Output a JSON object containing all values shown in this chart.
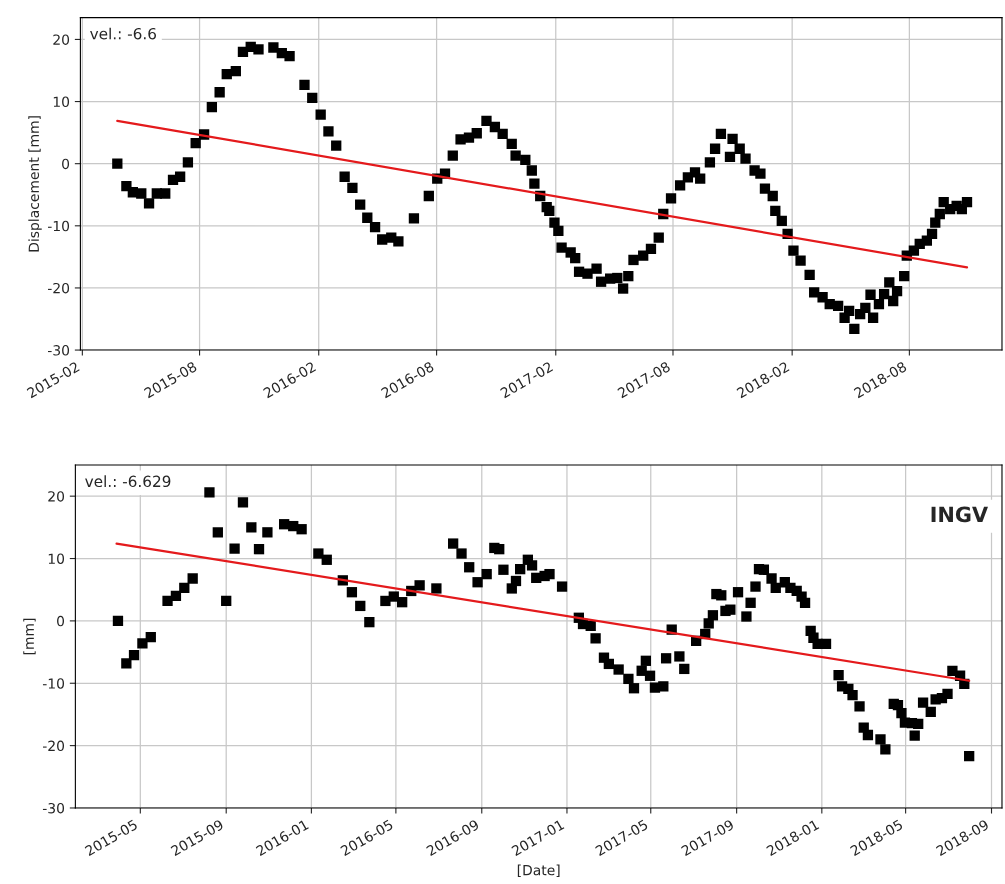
{
  "chart_data": [
    {
      "type": "scatter",
      "ylabel": "Displacement [mm]",
      "annotations": [
        "vel.: -6.6"
      ],
      "marker": "square",
      "grid": true,
      "xlim": [
        "2015-01-29",
        "2018-12-22"
      ],
      "ylim": [
        -30,
        23.5
      ],
      "xticks": [
        "2015-02",
        "2015-08",
        "2016-02",
        "2016-08",
        "2017-02",
        "2017-08",
        "2018-02",
        "2018-08"
      ],
      "yticks": [
        -30,
        -20,
        -10,
        0,
        10,
        20
      ],
      "series": [
        {
          "color": "#000000",
          "x": [
            "2015-03-27",
            "2015-04-10",
            "2015-04-20",
            "2015-05-03",
            "2015-05-15",
            "2015-05-27",
            "2015-06-09",
            "2015-06-21",
            "2015-07-02",
            "2015-07-14",
            "2015-07-26",
            "2015-08-08",
            "2015-08-20",
            "2015-09-01",
            "2015-09-12",
            "2015-09-26",
            "2015-10-07",
            "2015-10-19",
            "2015-10-31",
            "2015-11-23",
            "2015-12-06",
            "2015-12-18",
            "2016-01-10",
            "2016-01-22",
            "2016-02-04",
            "2016-02-16",
            "2016-02-28",
            "2016-03-12",
            "2016-03-24",
            "2016-04-05",
            "2016-04-16",
            "2016-04-28",
            "2016-05-09",
            "2016-05-23",
            "2016-06-03",
            "2016-06-27",
            "2016-07-20",
            "2016-08-02",
            "2016-08-14",
            "2016-08-26",
            "2016-09-07",
            "2016-09-20",
            "2016-10-02",
            "2016-10-17",
            "2016-10-30",
            "2016-11-11",
            "2016-11-25",
            "2016-12-01",
            "2016-12-16",
            "2016-12-26",
            "2016-12-30",
            "2017-01-08",
            "2017-01-18",
            "2017-01-22",
            "2017-01-30",
            "2017-02-05",
            "2017-02-10",
            "2017-02-24",
            "2017-03-03",
            "2017-03-09",
            "2017-03-22",
            "2017-04-05",
            "2017-04-12",
            "2017-04-26",
            "2017-05-07",
            "2017-05-16",
            "2017-05-24",
            "2017-06-01",
            "2017-06-16",
            "2017-06-28",
            "2017-07-10",
            "2017-07-17",
            "2017-07-29",
            "2017-08-12",
            "2017-08-24",
            "2017-09-04",
            "2017-09-12",
            "2017-09-27",
            "2017-10-05",
            "2017-10-14",
            "2017-10-28",
            "2017-11-01",
            "2017-11-12",
            "2017-11-21",
            "2017-12-05",
            "2017-12-14",
            "2017-12-21",
            "2018-01-02",
            "2018-01-06",
            "2018-01-16",
            "2018-01-25",
            "2018-02-03",
            "2018-02-14",
            "2018-02-28",
            "2018-03-07",
            "2018-03-20",
            "2018-03-31",
            "2018-04-13",
            "2018-04-23",
            "2018-04-30",
            "2018-05-08",
            "2018-05-17",
            "2018-05-25",
            "2018-06-02",
            "2018-06-06",
            "2018-06-15",
            "2018-06-23",
            "2018-07-01",
            "2018-07-07",
            "2018-07-13",
            "2018-07-24",
            "2018-07-28",
            "2018-08-08",
            "2018-08-17",
            "2018-08-28",
            "2018-09-05",
            "2018-09-10",
            "2018-09-17",
            "2018-09-23",
            "2018-10-03",
            "2018-10-13",
            "2018-10-21",
            "2018-10-29"
          ],
          "values": [
            0,
            -3.6,
            -4.6,
            -4.8,
            -6.4,
            -4.8,
            -4.8,
            -2.6,
            -2.1,
            0.2,
            3.3,
            4.7,
            9.1,
            11.5,
            14.4,
            14.9,
            18,
            18.8,
            18.4,
            18.7,
            17.8,
            17.3,
            12.7,
            10.6,
            7.9,
            5.2,
            2.9,
            -2.1,
            -3.9,
            -6.6,
            -8.7,
            -10.2,
            -12.2,
            -11.9,
            -12.5,
            -8.8,
            -5.2,
            -2.4,
            -1.6,
            1.3,
            3.9,
            4.2,
            4.9,
            6.9,
            5.9,
            4.8,
            3.2,
            1.3,
            0.6,
            -1.1,
            -3.2,
            -5.2,
            -7.0,
            -7.6,
            -9.5,
            -10.8,
            -13.5,
            -14.3,
            -15.2,
            -17.4,
            -17.7,
            -16.9,
            -19,
            -18.5,
            -18.4,
            -20.1,
            -18.1,
            -15.5,
            -14.8,
            -13.7,
            -11.9,
            -8.1,
            -5.6,
            -3.5,
            -2.2,
            -1.4,
            -2.4,
            0.2,
            2.4,
            4.8,
            1.1,
            4.0,
            2.4,
            0.8,
            -1.1,
            -1.6,
            -4.0,
            -5.2,
            -7.6,
            -9.2,
            -11.3,
            -14.0,
            -15.6,
            -17.9,
            -20.7,
            -21.5,
            -22.6,
            -22.9,
            -24.8,
            -23.7,
            -26.6,
            -24.2,
            -23.2,
            -21.1,
            -24.8,
            -22.6,
            -21,
            -19.1,
            -22.1,
            -20.5,
            -18.1,
            -14.8,
            -14.0,
            -12.9,
            -12.4,
            -11.3,
            -9.5,
            -8.1,
            -6.2,
            -7.3,
            -6.8,
            -7.3,
            -6.2
          ]
        },
        {
          "type": "line",
          "color": "#e41a1c",
          "marker": "none",
          "x": [
            "2015-03-27",
            "2018-10-29"
          ],
          "values": [
            6.9,
            -16.7
          ]
        }
      ]
    },
    {
      "type": "scatter",
      "xlabel": "[Date]",
      "ylabel": "[mm]",
      "annotations": [
        "vel.: -6.629",
        "INGV"
      ],
      "marker": "square",
      "grid": true,
      "xlim": [
        "2015-01-28",
        "2018-09-16"
      ],
      "ylim": [
        -30,
        25
      ],
      "xticks": [
        "2015-05",
        "2015-09",
        "2016-01",
        "2016-05",
        "2016-09",
        "2017-01",
        "2017-05",
        "2017-09",
        "2018-01",
        "2018-05",
        "2018-09"
      ],
      "yticks": [
        -30,
        -20,
        -10,
        0,
        10,
        20
      ],
      "series": [
        {
          "color": "#000000",
          "x": [
            "2015-03-30",
            "2015-04-11",
            "2015-04-22",
            "2015-05-04",
            "2015-05-16",
            "2015-06-09",
            "2015-06-21",
            "2015-07-03",
            "2015-07-15",
            "2015-08-08",
            "2015-08-20",
            "2015-09-01",
            "2015-09-13",
            "2015-09-25",
            "2015-10-07",
            "2015-10-18",
            "2015-10-30",
            "2015-11-23",
            "2015-12-06",
            "2015-12-18",
            "2016-01-11",
            "2016-01-23",
            "2016-02-15",
            "2016-02-28",
            "2016-03-11",
            "2016-03-24",
            "2016-04-16",
            "2016-04-28",
            "2016-05-10",
            "2016-05-23",
            "2016-06-04",
            "2016-06-28",
            "2016-07-22",
            "2016-08-03",
            "2016-08-14",
            "2016-08-26",
            "2016-09-08",
            "2016-09-19",
            "2016-09-26",
            "2016-10-02",
            "2016-10-14",
            "2016-10-20",
            "2016-10-26",
            "2016-11-06",
            "2016-11-12",
            "2016-11-18",
            "2016-11-30",
            "2016-12-07",
            "2016-12-25",
            "2017-01-18",
            "2017-01-24",
            "2017-02-04",
            "2017-02-11",
            "2017-02-23",
            "2017-03-02",
            "2017-03-16",
            "2017-03-30",
            "2017-04-07",
            "2017-04-18",
            "2017-04-24",
            "2017-04-30",
            "2017-05-07",
            "2017-05-19",
            "2017-05-23",
            "2017-05-31",
            "2017-06-11",
            "2017-06-18",
            "2017-07-05",
            "2017-07-18",
            "2017-07-23",
            "2017-07-29",
            "2017-08-03",
            "2017-08-10",
            "2017-08-16",
            "2017-08-23",
            "2017-09-03",
            "2017-09-15",
            "2017-09-21",
            "2017-09-28",
            "2017-10-03",
            "2017-10-10",
            "2017-10-21",
            "2017-10-27",
            "2017-11-09",
            "2017-11-17",
            "2017-11-26",
            "2017-12-03",
            "2017-12-08",
            "2017-12-16",
            "2017-12-20",
            "2017-12-26",
            "2018-01-07",
            "2018-01-25",
            "2018-01-30",
            "2018-02-08",
            "2018-02-14",
            "2018-02-24",
            "2018-03-02",
            "2018-03-08",
            "2018-03-26",
            "2018-04-02",
            "2018-04-14",
            "2018-04-20",
            "2018-04-25",
            "2018-04-30",
            "2018-05-10",
            "2018-05-14",
            "2018-05-19",
            "2018-05-26",
            "2018-06-06",
            "2018-06-13",
            "2018-06-22",
            "2018-06-30",
            "2018-07-07",
            "2018-07-18",
            "2018-07-24",
            "2018-07-31"
          ],
          "values": [
            0,
            -6.8,
            -5.5,
            -3.6,
            -2.6,
            3.2,
            4.0,
            5.3,
            6.8,
            20.6,
            14.2,
            3.2,
            11.6,
            19.0,
            15.0,
            11.5,
            14.2,
            15.5,
            15.2,
            14.7,
            10.8,
            9.8,
            6.5,
            4.6,
            2.4,
            -0.2,
            3.2,
            3.9,
            3.0,
            4.8,
            5.7,
            5.2,
            12.4,
            10.8,
            8.6,
            6.2,
            7.5,
            11.7,
            11.5,
            8.2,
            5.2,
            6.4,
            8.3,
            9.8,
            8.9,
            6.9,
            7.2,
            7.5,
            5.5,
            0.5,
            -0.5,
            -0.8,
            -2.8,
            -5.9,
            -6.9,
            -7.8,
            -9.3,
            -10.8,
            -8.0,
            -6.4,
            -8.8,
            -10.7,
            -10.5,
            -6.0,
            -1.4,
            -5.7,
            -7.7,
            -3.2,
            -2.1,
            -0.4,
            0.9,
            4.3,
            4.1,
            1.6,
            1.8,
            4.6,
            0.7,
            2.9,
            5.5,
            8.3,
            8.2,
            6.8,
            5.3,
            6.2,
            5.3,
            4.8,
            3.9,
            2.9,
            -1.6,
            -2.7,
            -3.7,
            -3.7,
            -8.7,
            -10.5,
            -10.9,
            -11.9,
            -13.7,
            -17.1,
            -18.3,
            -19.0,
            -20.6,
            -13.3,
            -13.5,
            -14.8,
            -16.3,
            -16.4,
            -18.4,
            -16.5,
            -13.1,
            -14.6,
            -12.6,
            -12.4,
            -11.7,
            -8.0,
            -8.8,
            -10.1,
            -21.7
          ]
        },
        {
          "type": "line",
          "color": "#e41a1c",
          "marker": "none",
          "x": [
            "2015-03-28",
            "2018-07-31"
          ],
          "values": [
            12.4,
            -9.6
          ]
        }
      ]
    }
  ]
}
